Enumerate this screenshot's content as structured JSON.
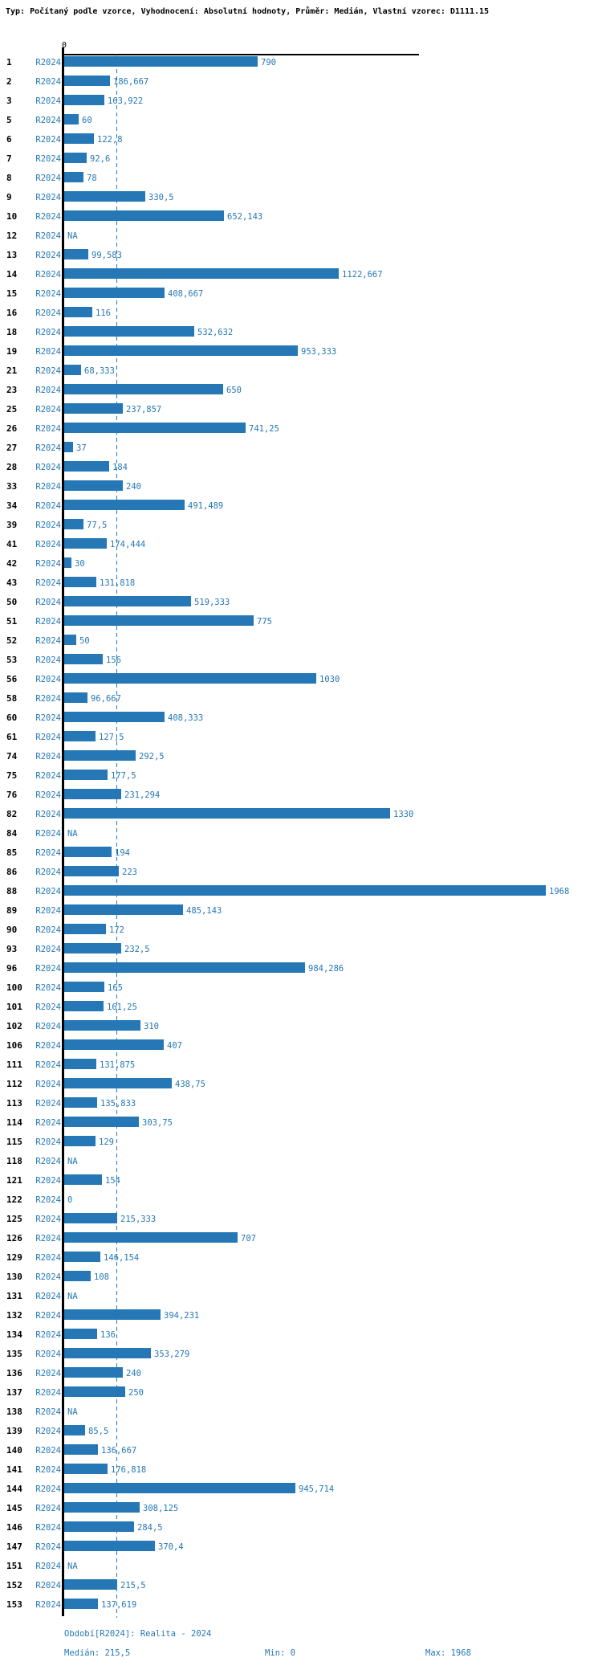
{
  "header": {
    "title": "Typ: Počítaný podle vzorce, Vyhodnocení: Absolutní hodnoty, Průměr: Medián, Vlastní vzorec: D1111.15"
  },
  "colors": {
    "bar_blue": "#2578b5",
    "axis_black": "#000000",
    "background": "#ffffff"
  },
  "chart_data": {
    "type": "bar",
    "orientation": "horizontal",
    "title": "Typ: Počítaný podle vzorce, Vyhodnocení: Absolutní hodnoty, Průměr: Medián, Vlastní vzorec: D1111.15",
    "series_name": "R2024",
    "xlabel": "",
    "ylabel": "",
    "xlim": [
      0,
      1968
    ],
    "zero_tick_label": "0",
    "median_value": 215.5,
    "grid": false,
    "legend_position": "bottom",
    "na_label": "NA",
    "rows": [
      {
        "id": "1",
        "value": 790,
        "label": "790"
      },
      {
        "id": "2",
        "value": 186.667,
        "label": "186,667"
      },
      {
        "id": "3",
        "value": 163.922,
        "label": "163,922"
      },
      {
        "id": "5",
        "value": 60,
        "label": "60"
      },
      {
        "id": "6",
        "value": 122.8,
        "label": "122,8"
      },
      {
        "id": "7",
        "value": 92.6,
        "label": "92,6"
      },
      {
        "id": "8",
        "value": 78,
        "label": "78"
      },
      {
        "id": "9",
        "value": 330.5,
        "label": "330,5"
      },
      {
        "id": "10",
        "value": 652.143,
        "label": "652,143"
      },
      {
        "id": "12",
        "value": null,
        "label": "NA"
      },
      {
        "id": "13",
        "value": 99.583,
        "label": "99,583"
      },
      {
        "id": "14",
        "value": 1122.667,
        "label": "1122,667"
      },
      {
        "id": "15",
        "value": 408.667,
        "label": "408,667"
      },
      {
        "id": "16",
        "value": 116,
        "label": "116"
      },
      {
        "id": "18",
        "value": 532.632,
        "label": "532,632"
      },
      {
        "id": "19",
        "value": 953.333,
        "label": "953,333"
      },
      {
        "id": "21",
        "value": 68.333,
        "label": "68,333"
      },
      {
        "id": "23",
        "value": 650,
        "label": "650"
      },
      {
        "id": "25",
        "value": 237.857,
        "label": "237,857"
      },
      {
        "id": "26",
        "value": 741.25,
        "label": "741,25"
      },
      {
        "id": "27",
        "value": 37,
        "label": "37"
      },
      {
        "id": "28",
        "value": 184,
        "label": "184"
      },
      {
        "id": "33",
        "value": 240,
        "label": "240"
      },
      {
        "id": "34",
        "value": 491.489,
        "label": "491,489"
      },
      {
        "id": "39",
        "value": 77.5,
        "label": "77,5"
      },
      {
        "id": "41",
        "value": 174.444,
        "label": "174,444"
      },
      {
        "id": "42",
        "value": 30,
        "label": "30"
      },
      {
        "id": "43",
        "value": 131.818,
        "label": "131,818"
      },
      {
        "id": "50",
        "value": 519.333,
        "label": "519,333"
      },
      {
        "id": "51",
        "value": 775,
        "label": "775"
      },
      {
        "id": "52",
        "value": 50,
        "label": "50"
      },
      {
        "id": "53",
        "value": 156,
        "label": "156"
      },
      {
        "id": "56",
        "value": 1030,
        "label": "1030"
      },
      {
        "id": "58",
        "value": 96.667,
        "label": "96,667"
      },
      {
        "id": "60",
        "value": 408.333,
        "label": "408,333"
      },
      {
        "id": "61",
        "value": 127.5,
        "label": "127,5"
      },
      {
        "id": "74",
        "value": 292.5,
        "label": "292,5"
      },
      {
        "id": "75",
        "value": 177.5,
        "label": "177,5"
      },
      {
        "id": "76",
        "value": 231.294,
        "label": "231,294"
      },
      {
        "id": "82",
        "value": 1330,
        "label": "1330"
      },
      {
        "id": "84",
        "value": null,
        "label": "NA"
      },
      {
        "id": "85",
        "value": 194,
        "label": "194"
      },
      {
        "id": "86",
        "value": 223,
        "label": "223"
      },
      {
        "id": "88",
        "value": 1968,
        "label": "1968"
      },
      {
        "id": "89",
        "value": 485.143,
        "label": "485,143"
      },
      {
        "id": "90",
        "value": 172,
        "label": "172"
      },
      {
        "id": "93",
        "value": 232.5,
        "label": "232,5"
      },
      {
        "id": "96",
        "value": 984.286,
        "label": "984,286"
      },
      {
        "id": "100",
        "value": 165,
        "label": "165"
      },
      {
        "id": "101",
        "value": 161.25,
        "label": "161,25"
      },
      {
        "id": "102",
        "value": 310,
        "label": "310"
      },
      {
        "id": "106",
        "value": 407,
        "label": "407"
      },
      {
        "id": "111",
        "value": 131.875,
        "label": "131,875"
      },
      {
        "id": "112",
        "value": 438.75,
        "label": "438,75"
      },
      {
        "id": "113",
        "value": 135.833,
        "label": "135,833"
      },
      {
        "id": "114",
        "value": 303.75,
        "label": "303,75"
      },
      {
        "id": "115",
        "value": 129,
        "label": "129"
      },
      {
        "id": "118",
        "value": null,
        "label": "NA"
      },
      {
        "id": "121",
        "value": 154,
        "label": "154"
      },
      {
        "id": "122",
        "value": 0,
        "label": "0"
      },
      {
        "id": "125",
        "value": 215.333,
        "label": "215,333"
      },
      {
        "id": "126",
        "value": 707,
        "label": "707"
      },
      {
        "id": "129",
        "value": 146.154,
        "label": "146,154"
      },
      {
        "id": "130",
        "value": 108,
        "label": "108"
      },
      {
        "id": "131",
        "value": null,
        "label": "NA"
      },
      {
        "id": "132",
        "value": 394.231,
        "label": "394,231"
      },
      {
        "id": "134",
        "value": 136,
        "label": "136"
      },
      {
        "id": "135",
        "value": 353.279,
        "label": "353,279"
      },
      {
        "id": "136",
        "value": 240,
        "label": "240"
      },
      {
        "id": "137",
        "value": 250,
        "label": "250"
      },
      {
        "id": "138",
        "value": null,
        "label": "NA"
      },
      {
        "id": "139",
        "value": 85.5,
        "label": "85,5"
      },
      {
        "id": "140",
        "value": 136.667,
        "label": "136,667"
      },
      {
        "id": "141",
        "value": 176.818,
        "label": "176,818"
      },
      {
        "id": "144",
        "value": 945.714,
        "label": "945,714"
      },
      {
        "id": "145",
        "value": 308.125,
        "label": "308,125"
      },
      {
        "id": "146",
        "value": 284.5,
        "label": "284,5"
      },
      {
        "id": "147",
        "value": 370.4,
        "label": "370,4"
      },
      {
        "id": "151",
        "value": null,
        "label": "NA"
      },
      {
        "id": "152",
        "value": 215.5,
        "label": "215,5"
      },
      {
        "id": "153",
        "value": 137.619,
        "label": "137,619"
      }
    ],
    "footer": {
      "period": "Období[R2024]: Realita - 2024",
      "median": "Medián: 215,5",
      "min": "Min: 0",
      "max": "Max: 1968"
    }
  }
}
